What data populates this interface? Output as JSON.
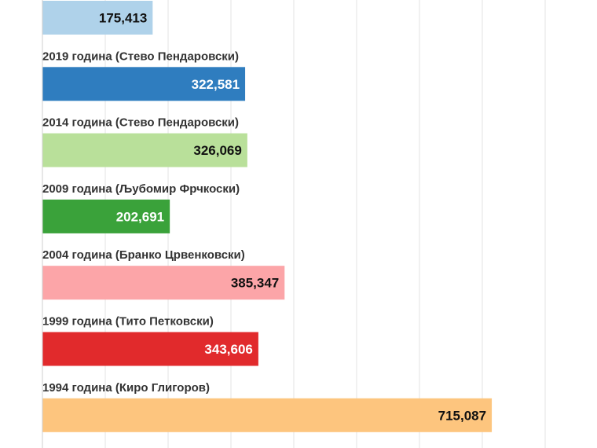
{
  "chart_data": {
    "type": "bar",
    "orientation": "horizontal",
    "categories": [
      "",
      "2019 година (Стево Пендаровски)",
      "2014 година (Стево Пендаровски)",
      "2009 година (Љубомир Фрчкоски)",
      "2004 година (Бранко Црвенковски)",
      "1999 година (Тито Петковски)",
      "1994 година (Киро Глигоров)"
    ],
    "values": [
      175413,
      322581,
      326069,
      202691,
      385347,
      343606,
      715087
    ],
    "value_labels": [
      "175,413",
      "322,581",
      "326,069",
      "202,691",
      "385,347",
      "343,606",
      "715,087"
    ],
    "colors": [
      "#afd2ea",
      "#2f7dbf",
      "#b9e09a",
      "#3aa23a",
      "#fca5a8",
      "#e12a2c",
      "#fdc57e"
    ],
    "label_colors": [
      "#111111",
      "#ffffff",
      "#111111",
      "#ffffff",
      "#111111",
      "#ffffff",
      "#111111"
    ],
    "xlim": [
      0,
      800000
    ],
    "grid": true,
    "legend": "none"
  }
}
